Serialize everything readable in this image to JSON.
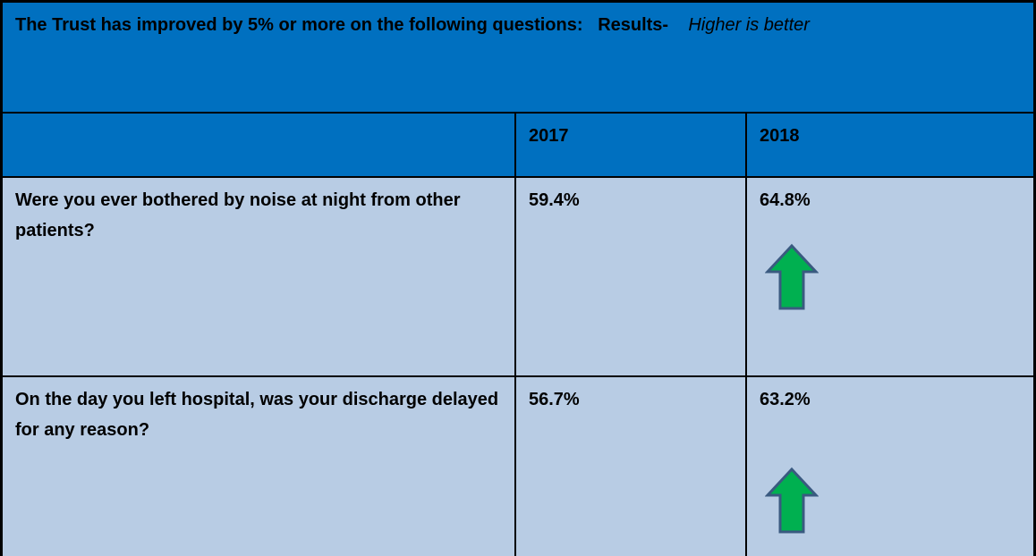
{
  "header": {
    "title": "The Trust has improved  by 5% or more on the following questions:",
    "results_label": "Results-",
    "note": "Higher is better"
  },
  "table": {
    "column_headers": [
      "2017",
      "2018"
    ],
    "rows": [
      {
        "question": "Were you ever bothered by noise at night from other patients?",
        "values": [
          "59.4%",
          "64.8%"
        ]
      },
      {
        "question": "On the day you left hospital, was your discharge delayed for any reason?",
        "values": [
          "56.7%",
          "63.2%"
        ]
      }
    ]
  }
}
